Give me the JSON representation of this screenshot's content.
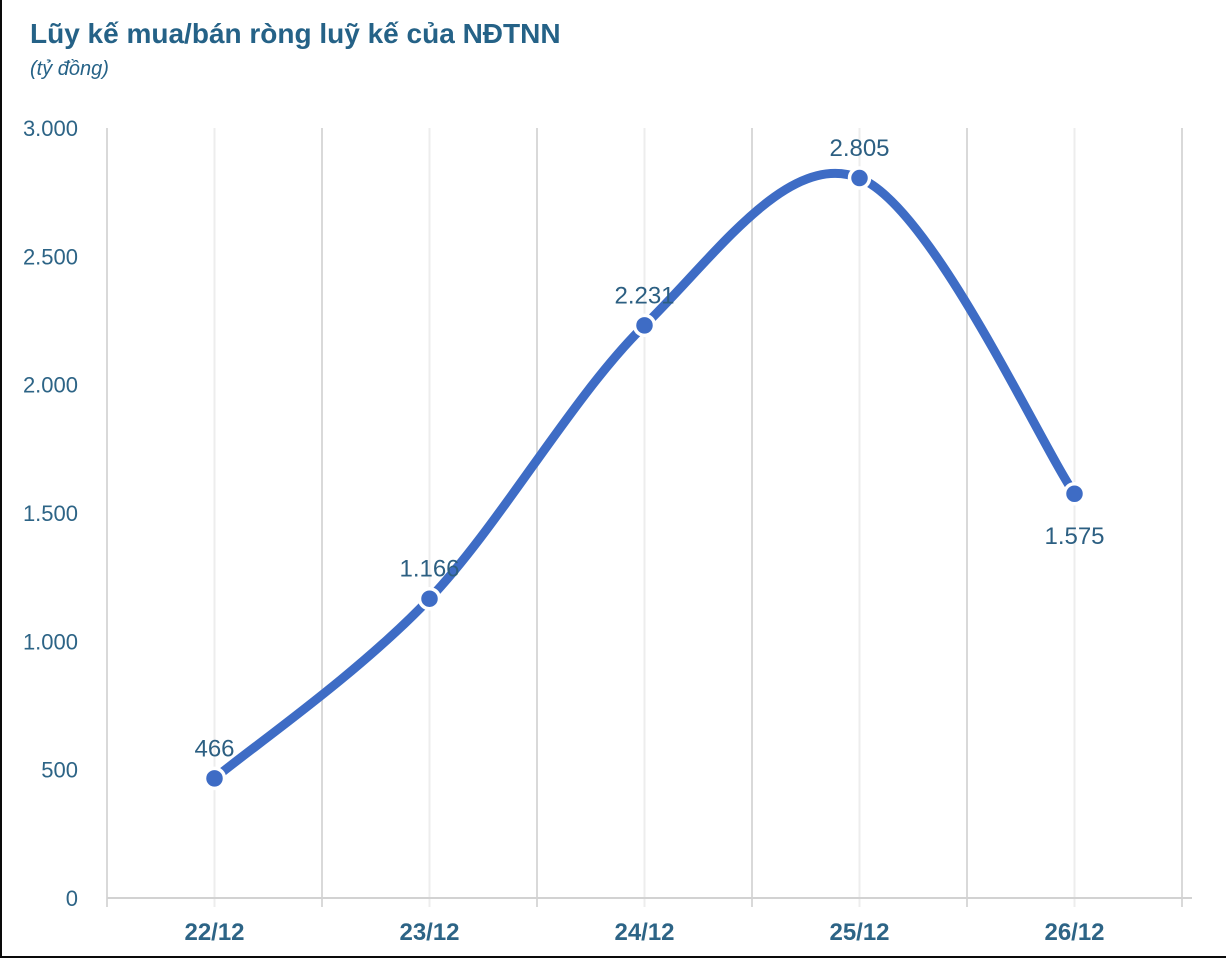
{
  "title": "Lũy kế mua/bán ròng luỹ kế của NĐTNN",
  "subtitle": "(tỷ đồng)",
  "colors": {
    "accent": "#3e6cc5",
    "text": "#2d6486",
    "data_label": "#2c5f82",
    "grid_boundary": "#d9d9d9",
    "grid_center": "#ededed",
    "axis_line": "#d2d2d2",
    "border": "#0a0a0a",
    "background": "#ffffff"
  },
  "chart_data": {
    "type": "line",
    "title": "Lũy kế mua/bán ròng luỹ kế của NĐTNN",
    "unit_label": "(tỷ đồng)",
    "categories": [
      "22/12",
      "23/12",
      "24/12",
      "25/12",
      "26/12"
    ],
    "values": [
      466,
      1166,
      2231,
      2805,
      1575
    ],
    "value_labels": [
      "466",
      "1.166",
      "2.231",
      "2.805",
      "1.575"
    ],
    "label_positions": [
      "above",
      "above",
      "above",
      "above",
      "below"
    ],
    "ylim": [
      0,
      3000
    ],
    "yticks": [
      0,
      500,
      1000,
      1500,
      2000,
      2500,
      3000
    ],
    "ytick_labels": [
      "0",
      "500",
      "1.000",
      "1.500",
      "2.000",
      "2.500",
      "3.000"
    ],
    "grid": "vertical-only",
    "smoothed": true,
    "legend": "none",
    "marker": "circle"
  }
}
